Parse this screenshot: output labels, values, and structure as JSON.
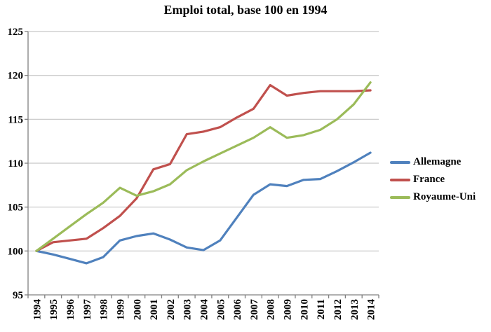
{
  "colors": {
    "allemagne": "#4F81BD",
    "france": "#C0504D",
    "royaume_uni": "#9BBB59",
    "gridline": "#C6C6C6",
    "axis": "#808080",
    "text": "#000000"
  },
  "chart_data": {
    "type": "line",
    "title": "Emploi total, base 100 en 1994",
    "categories": [
      "1994",
      "1995",
      "1996",
      "1997",
      "1998",
      "1999",
      "2000",
      "2001",
      "2002",
      "2003",
      "2004",
      "2005",
      "2006",
      "2007",
      "2008",
      "2009",
      "2010",
      "2011",
      "2012",
      "2013",
      "2014"
    ],
    "series": [
      {
        "name": "Allemagne",
        "color": "#4F81BD",
        "values": [
          100,
          99.6,
          99.1,
          98.6,
          99.3,
          101.2,
          101.7,
          102.0,
          101.3,
          100.4,
          100.1,
          101.2,
          103.8,
          106.4,
          107.6,
          107.4,
          108.1,
          108.2,
          109.1,
          110.1,
          111.2
        ]
      },
      {
        "name": "France",
        "color": "#C0504D",
        "values": [
          100,
          101.0,
          101.2,
          101.4,
          102.6,
          104.0,
          106.0,
          109.3,
          109.9,
          113.3,
          113.6,
          114.1,
          115.2,
          116.2,
          118.9,
          117.7,
          118.0,
          118.2,
          118.2,
          118.2,
          118.3
        ]
      },
      {
        "name": "Royaume-Uni",
        "color": "#9BBB59",
        "values": [
          100,
          101.4,
          102.8,
          104.2,
          105.5,
          107.2,
          106.3,
          106.8,
          107.6,
          109.2,
          110.2,
          111.1,
          112.0,
          112.9,
          114.1,
          112.9,
          113.2,
          113.8,
          115.0,
          116.7,
          119.2
        ]
      }
    ],
    "ylim": [
      95,
      125
    ],
    "y_ticks": [
      95,
      100,
      105,
      110,
      115,
      120,
      125
    ],
    "grid": true,
    "legend_position": "right",
    "xlabel": "",
    "ylabel": ""
  }
}
